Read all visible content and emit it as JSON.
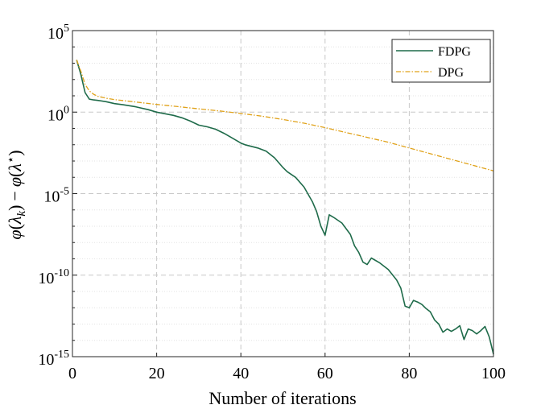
{
  "chart_data": {
    "type": "line",
    "title": "",
    "xlabel": "Number of iterations",
    "ylabel": "φ(λ_k) − φ(λ*)",
    "ylabel_parts": {
      "f1": "φ",
      "open1": "(",
      "lam1": "λ",
      "sub1": "k",
      "close1": ")",
      "minus": "−",
      "f2": "φ",
      "open2": "(",
      "lam2": "λ",
      "sup2": "⋆",
      "close2": ")"
    },
    "xlim": [
      0,
      100
    ],
    "ylim_log10": [
      -15,
      5
    ],
    "yscale": "log",
    "grid": true,
    "legend_position": "top-right",
    "x_ticks": [
      "0",
      "20",
      "40",
      "60",
      "80",
      "100"
    ],
    "y_ticks": [
      {
        "base": "10",
        "exp": "5"
      },
      {
        "base": "10",
        "exp": "0"
      },
      {
        "base": "10",
        "exp": "-5"
      },
      {
        "base": "10",
        "exp": "-10"
      },
      {
        "base": "10",
        "exp": "-15"
      }
    ],
    "series": [
      {
        "name": "FDPG",
        "color": "#1f6b4a",
        "dash": "solid",
        "points": [
          [
            1,
            3.2
          ],
          [
            2,
            2.3
          ],
          [
            3,
            1.2
          ],
          [
            4,
            0.8
          ],
          [
            5,
            0.75
          ],
          [
            6,
            0.72
          ],
          [
            8,
            0.64
          ],
          [
            10,
            0.52
          ],
          [
            12,
            0.45
          ],
          [
            15,
            0.33
          ],
          [
            18,
            0.15
          ],
          [
            20,
            0.0
          ],
          [
            22,
            -0.1
          ],
          [
            24,
            -0.2
          ],
          [
            26,
            -0.35
          ],
          [
            28,
            -0.55
          ],
          [
            30,
            -0.8
          ],
          [
            32,
            -0.9
          ],
          [
            34,
            -1.05
          ],
          [
            36,
            -1.3
          ],
          [
            38,
            -1.6
          ],
          [
            40,
            -1.9
          ],
          [
            41,
            -2.0
          ],
          [
            44,
            -2.2
          ],
          [
            46,
            -2.4
          ],
          [
            48,
            -2.8
          ],
          [
            50,
            -3.4
          ],
          [
            51,
            -3.65
          ],
          [
            53,
            -4.0
          ],
          [
            55,
            -4.6
          ],
          [
            57,
            -5.5
          ],
          [
            58,
            -6.1
          ],
          [
            59,
            -7.0
          ],
          [
            60,
            -7.55
          ],
          [
            61,
            -6.3
          ],
          [
            62,
            -6.45
          ],
          [
            64,
            -6.8
          ],
          [
            66,
            -7.5
          ],
          [
            67,
            -8.2
          ],
          [
            68,
            -8.6
          ],
          [
            69,
            -9.2
          ],
          [
            70,
            -9.35
          ],
          [
            71,
            -8.95
          ],
          [
            73,
            -9.25
          ],
          [
            75,
            -9.65
          ],
          [
            77,
            -10.3
          ],
          [
            78,
            -10.8
          ],
          [
            79,
            -11.9
          ],
          [
            80,
            -12.0
          ],
          [
            81,
            -11.55
          ],
          [
            82,
            -11.65
          ],
          [
            83,
            -11.8
          ],
          [
            84,
            -12.05
          ],
          [
            85,
            -12.25
          ],
          [
            86,
            -12.75
          ],
          [
            87,
            -13.0
          ],
          [
            88,
            -13.5
          ],
          [
            89,
            -13.3
          ],
          [
            90,
            -13.45
          ],
          [
            91,
            -13.3
          ],
          [
            92,
            -13.1
          ],
          [
            93,
            -13.95
          ],
          [
            94,
            -13.3
          ],
          [
            95,
            -13.4
          ],
          [
            96,
            -13.6
          ],
          [
            97,
            -13.4
          ],
          [
            98,
            -13.15
          ],
          [
            99,
            -13.8
          ],
          [
            100,
            -14.85
          ]
        ]
      },
      {
        "name": "DPG",
        "color": "#e0a21a",
        "dash": "dashdot",
        "points": [
          [
            1,
            3.2
          ],
          [
            2,
            2.5
          ],
          [
            3,
            1.7
          ],
          [
            4,
            1.3
          ],
          [
            5,
            1.1
          ],
          [
            6,
            0.97
          ],
          [
            8,
            0.85
          ],
          [
            10,
            0.77
          ],
          [
            15,
            0.62
          ],
          [
            20,
            0.47
          ],
          [
            25,
            0.34
          ],
          [
            30,
            0.2
          ],
          [
            35,
            0.07
          ],
          [
            40,
            -0.08
          ],
          [
            45,
            -0.25
          ],
          [
            50,
            -0.45
          ],
          [
            55,
            -0.68
          ],
          [
            60,
            -0.95
          ],
          [
            65,
            -1.25
          ],
          [
            70,
            -1.55
          ],
          [
            75,
            -1.85
          ],
          [
            80,
            -2.2
          ],
          [
            85,
            -2.55
          ],
          [
            90,
            -2.9
          ],
          [
            95,
            -3.25
          ],
          [
            100,
            -3.6
          ]
        ]
      }
    ]
  }
}
